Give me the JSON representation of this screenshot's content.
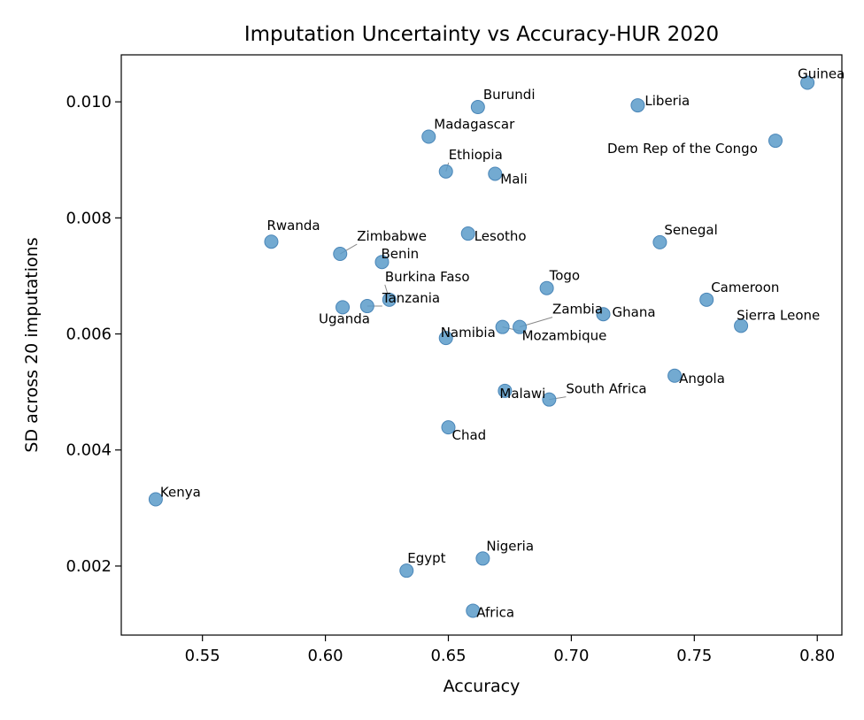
{
  "chart_data": {
    "type": "scatter",
    "title": "Imputation Uncertainty vs Accuracy-HUR 2020",
    "xlabel": "Accuracy",
    "ylabel": "SD across 20 imputations",
    "xlim": [
      0.517,
      0.81
    ],
    "ylim": [
      0.00081,
      0.01081
    ],
    "xticks": [
      0.55,
      0.6,
      0.65,
      0.7,
      0.75,
      0.8
    ],
    "xtick_labels": [
      "0.55",
      "0.60",
      "0.65",
      "0.70",
      "0.75",
      "0.80"
    ],
    "yticks": [
      0.002,
      0.004,
      0.006,
      0.008,
      0.01
    ],
    "ytick_labels": [
      "0.002",
      "0.004",
      "0.006",
      "0.008",
      "0.010"
    ],
    "grid": false,
    "marker_color": "#5a9bc9",
    "points": [
      {
        "label": "Guinea",
        "x": 0.796,
        "y": 0.01033
      },
      {
        "label": "Burundi",
        "x": 0.662,
        "y": 0.00991
      },
      {
        "label": "Liberia",
        "x": 0.727,
        "y": 0.00994
      },
      {
        "label": "Madagascar",
        "x": 0.642,
        "y": 0.0094
      },
      {
        "label": "Dem Rep of the Congo",
        "x": 0.783,
        "y": 0.00933
      },
      {
        "label": "Ethiopia",
        "x": 0.649,
        "y": 0.0088
      },
      {
        "label": "Mali",
        "x": 0.669,
        "y": 0.00876
      },
      {
        "label": "Rwanda",
        "x": 0.578,
        "y": 0.00759
      },
      {
        "label": "Zimbabwe",
        "x": 0.606,
        "y": 0.00738
      },
      {
        "label": "Lesotho",
        "x": 0.658,
        "y": 0.00773
      },
      {
        "label": "Senegal",
        "x": 0.736,
        "y": 0.00758
      },
      {
        "label": "Benin",
        "x": 0.623,
        "y": 0.00724
      },
      {
        "label": "Togo",
        "x": 0.69,
        "y": 0.00679
      },
      {
        "label": "Burkina Faso",
        "x": 0.626,
        "y": 0.00659
      },
      {
        "label": "Tanzania",
        "x": 0.617,
        "y": 0.00648
      },
      {
        "label": "Uganda",
        "x": 0.607,
        "y": 0.00646
      },
      {
        "label": "Cameroon",
        "x": 0.755,
        "y": 0.00659
      },
      {
        "label": "Zambia",
        "x": 0.679,
        "y": 0.00612
      },
      {
        "label": "Mozambique",
        "x": 0.672,
        "y": 0.00612
      },
      {
        "label": "Namibia",
        "x": 0.649,
        "y": 0.00593
      },
      {
        "label": "Ghana",
        "x": 0.713,
        "y": 0.00634
      },
      {
        "label": "Sierra Leone",
        "x": 0.769,
        "y": 0.00614
      },
      {
        "label": "Angola",
        "x": 0.742,
        "y": 0.00528
      },
      {
        "label": "Malawi",
        "x": 0.673,
        "y": 0.00502
      },
      {
        "label": "South Africa",
        "x": 0.691,
        "y": 0.00487
      },
      {
        "label": "Chad",
        "x": 0.65,
        "y": 0.00439
      },
      {
        "label": "Kenya",
        "x": 0.531,
        "y": 0.00315
      },
      {
        "label": "Nigeria",
        "x": 0.664,
        "y": 0.00213
      },
      {
        "label": "Egypt",
        "x": 0.633,
        "y": 0.00192
      },
      {
        "label": "Africa",
        "x": 0.66,
        "y": 0.00123
      }
    ]
  }
}
